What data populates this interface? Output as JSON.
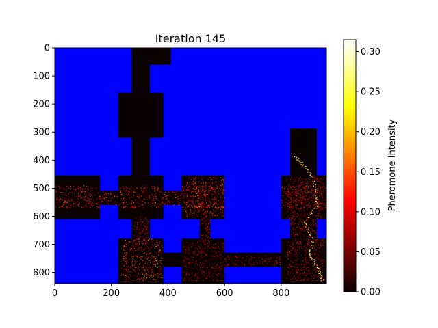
{
  "chart_data": {
    "type": "heatmap",
    "title": "Iteration 145",
    "xlabel": "",
    "ylabel": "",
    "xlim": [
      0,
      960
    ],
    "ylim": [
      840,
      0
    ],
    "x_ticks": [
      0,
      200,
      400,
      600,
      800
    ],
    "y_ticks": [
      0,
      100,
      200,
      300,
      400,
      500,
      600,
      700,
      800
    ],
    "x_tick_labels": [
      "0",
      "200",
      "400",
      "600",
      "800"
    ],
    "y_tick_labels": [
      "0",
      "100",
      "200",
      "300",
      "400",
      "500",
      "600",
      "700",
      "800"
    ],
    "wall_color": "#0000ff",
    "colormap": "hot",
    "colorbar": {
      "label": "Pheromone Intensity",
      "min": 0.0,
      "max": 0.315,
      "ticks": [
        0.0,
        0.05,
        0.1,
        0.15,
        0.2,
        0.25,
        0.3
      ],
      "tick_labels": [
        "0.00",
        "0.05",
        "0.10",
        "0.15",
        "0.20",
        "0.25",
        "0.30"
      ]
    },
    "open_regions": [
      {
        "name": "top-corridor-a",
        "x": [
          272,
          410
        ],
        "y": [
          0,
          60
        ]
      },
      {
        "name": "top-corridor-b",
        "x": [
          272,
          336
        ],
        "y": [
          0,
          160
        ]
      },
      {
        "name": "upper-room",
        "x": [
          224,
          384
        ],
        "y": [
          160,
          320
        ]
      },
      {
        "name": "upper-shaft",
        "x": [
          272,
          336
        ],
        "y": [
          320,
          455
        ]
      },
      {
        "name": "right-upper-shaft",
        "x": [
          832,
          926
        ],
        "y": [
          288,
          455
        ]
      },
      {
        "name": "left-room",
        "x": [
          0,
          160
        ],
        "y": [
          455,
          610
        ]
      },
      {
        "name": "left-link",
        "x": [
          160,
          224
        ],
        "y": [
          510,
          560
        ]
      },
      {
        "name": "center-left-room",
        "x": [
          224,
          384
        ],
        "y": [
          455,
          610
        ]
      },
      {
        "name": "center-link",
        "x": [
          384,
          448
        ],
        "y": [
          510,
          560
        ]
      },
      {
        "name": "center-right-room",
        "x": [
          448,
          600
        ],
        "y": [
          455,
          610
        ]
      },
      {
        "name": "right-room",
        "x": [
          800,
          960
        ],
        "y": [
          455,
          610
        ]
      },
      {
        "name": "mid-shaft-a",
        "x": [
          272,
          336
        ],
        "y": [
          610,
          680
        ]
      },
      {
        "name": "mid-shaft-b",
        "x": [
          512,
          550
        ],
        "y": [
          610,
          680
        ]
      },
      {
        "name": "right-shaft",
        "x": [
          832,
          926
        ],
        "y": [
          610,
          680
        ]
      },
      {
        "name": "lower-left-room",
        "x": [
          224,
          384
        ],
        "y": [
          680,
          840
        ]
      },
      {
        "name": "lower-link-a",
        "x": [
          384,
          448
        ],
        "y": [
          730,
          780
        ]
      },
      {
        "name": "lower-center-room",
        "x": [
          448,
          600
        ],
        "y": [
          680,
          840
        ]
      },
      {
        "name": "lower-corridor",
        "x": [
          600,
          800
        ],
        "y": [
          730,
          780
        ]
      },
      {
        "name": "lower-right-room",
        "x": [
          800,
          960
        ],
        "y": [
          680,
          840
        ]
      }
    ],
    "trail_regions": [
      {
        "x": [
          0,
          960
        ],
        "y": [
          490,
          570
        ],
        "level": 0.12
      },
      {
        "x": [
          240,
          380
        ],
        "y": [
          680,
          830
        ],
        "level": 0.14
      },
      {
        "x": [
          460,
          600
        ],
        "y": [
          460,
          600
        ],
        "level": 0.13
      },
      {
        "x": [
          450,
          600
        ],
        "y": [
          690,
          830
        ],
        "level": 0.08
      },
      {
        "x": [
          280,
          330
        ],
        "y": [
          600,
          690
        ],
        "level": 0.11
      },
      {
        "x": [
          510,
          550
        ],
        "y": [
          600,
          690
        ],
        "level": 0.1
      },
      {
        "x": [
          600,
          800
        ],
        "y": [
          740,
          775
        ],
        "level": 0.09
      },
      {
        "x": [
          820,
          950
        ],
        "y": [
          460,
          830
        ],
        "level": 0.09
      }
    ],
    "hot_trail": [
      [
        850,
        390
      ],
      [
        880,
        420
      ],
      [
        915,
        470
      ],
      [
        925,
        560
      ],
      [
        880,
        620
      ],
      [
        910,
        680
      ],
      [
        900,
        740
      ],
      [
        930,
        790
      ],
      [
        945,
        830
      ]
    ]
  }
}
